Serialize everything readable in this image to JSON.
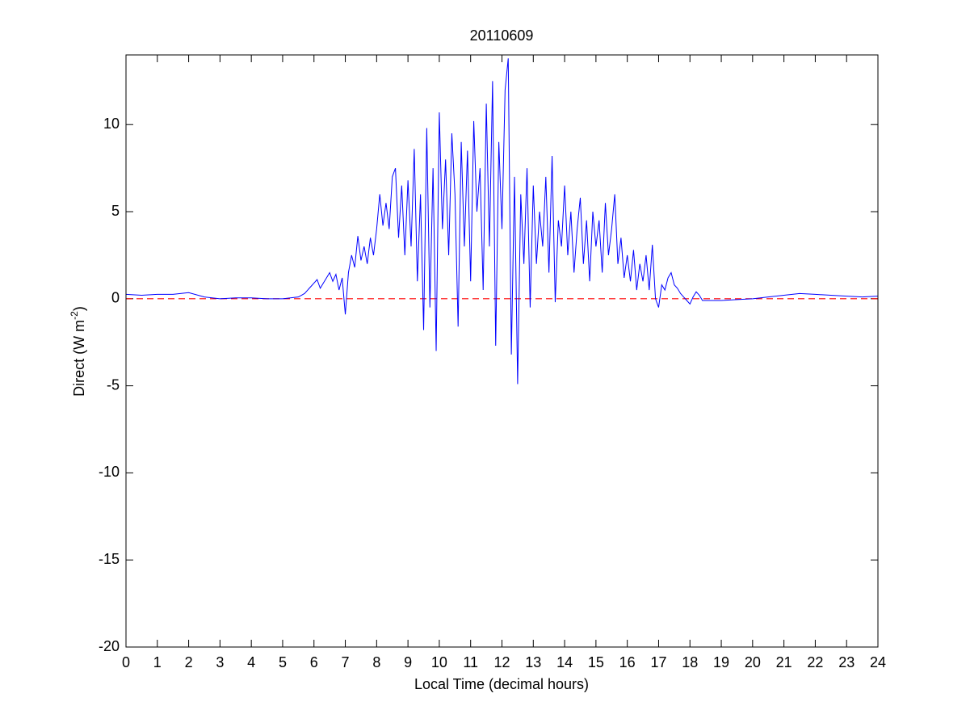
{
  "chart_data": {
    "type": "line",
    "title": "20110609",
    "x_label": "Local Time (decimal hours)",
    "y_label": {
      "text": "Direct (W m",
      "superscript": "-2",
      "end": ")"
    },
    "x": [
      0,
      0.5,
      1,
      1.5,
      2,
      2.5,
      3,
      3.5,
      4,
      4.5,
      5,
      5.5,
      5.6,
      5.7,
      5.8,
      5.9,
      6.0,
      6.1,
      6.2,
      6.3,
      6.4,
      6.5,
      6.6,
      6.7,
      6.8,
      6.9,
      7.0,
      7.1,
      7.2,
      7.3,
      7.4,
      7.5,
      7.6,
      7.7,
      7.8,
      7.9,
      8.0,
      8.1,
      8.2,
      8.3,
      8.4,
      8.5,
      8.6,
      8.7,
      8.8,
      8.9,
      9.0,
      9.1,
      9.2,
      9.3,
      9.4,
      9.5,
      9.6,
      9.7,
      9.8,
      9.9,
      10.0,
      10.1,
      10.2,
      10.3,
      10.4,
      10.5,
      10.6,
      10.7,
      10.8,
      10.9,
      11.0,
      11.1,
      11.2,
      11.3,
      11.4,
      11.5,
      11.6,
      11.7,
      11.8,
      11.9,
      12.0,
      12.1,
      12.2,
      12.3,
      12.4,
      12.5,
      12.6,
      12.7,
      12.8,
      12.9,
      13.0,
      13.1,
      13.2,
      13.3,
      13.4,
      13.5,
      13.6,
      13.7,
      13.8,
      13.9,
      14.0,
      14.1,
      14.2,
      14.3,
      14.4,
      14.5,
      14.6,
      14.7,
      14.8,
      14.9,
      15.0,
      15.1,
      15.2,
      15.3,
      15.4,
      15.5,
      15.6,
      15.7,
      15.8,
      15.9,
      16.0,
      16.1,
      16.2,
      16.3,
      16.4,
      16.5,
      16.6,
      16.7,
      16.8,
      16.9,
      17.0,
      17.1,
      17.2,
      17.3,
      17.4,
      17.5,
      17.6,
      17.7,
      17.8,
      17.9,
      18.0,
      18.1,
      18.2,
      18.3,
      18.4,
      18.5,
      19,
      19.5,
      20,
      20.5,
      21,
      21.5,
      22,
      22.5,
      23,
      23.5,
      24
    ],
    "series": [
      {
        "name": "Direct",
        "color": "#0000ff",
        "values": [
          0.25,
          0.2,
          0.25,
          0.25,
          0.35,
          0.1,
          0.0,
          0.05,
          0.05,
          0.0,
          0.0,
          0.1,
          0.2,
          0.3,
          0.5,
          0.7,
          0.9,
          1.1,
          0.6,
          0.9,
          1.2,
          1.5,
          1.0,
          1.4,
          0.5,
          1.2,
          -0.9,
          1.5,
          2.5,
          1.8,
          3.6,
          2.2,
          3.0,
          2.0,
          3.5,
          2.5,
          4.0,
          6.0,
          4.2,
          5.5,
          4.0,
          7.0,
          7.5,
          3.5,
          6.5,
          2.5,
          6.8,
          3.0,
          8.6,
          1.0,
          6.0,
          -1.8,
          9.8,
          -0.5,
          7.5,
          -3.0,
          10.7,
          4.0,
          8.0,
          2.5,
          9.5,
          6.0,
          -1.6,
          9.0,
          3.0,
          8.5,
          1.0,
          10.2,
          5.0,
          7.5,
          0.5,
          11.2,
          3.0,
          12.5,
          -2.7,
          9.0,
          4.0,
          12.0,
          13.8,
          -3.2,
          7.0,
          -4.9,
          6.0,
          2.0,
          7.5,
          -0.5,
          6.5,
          2.0,
          5.0,
          3.0,
          7.0,
          1.5,
          8.2,
          -0.2,
          4.5,
          3.0,
          6.5,
          2.5,
          5.0,
          1.5,
          4.0,
          5.8,
          2.0,
          4.5,
          1.0,
          5.0,
          3.0,
          4.5,
          1.5,
          5.5,
          2.5,
          4.0,
          6.0,
          2.0,
          3.5,
          1.2,
          2.5,
          1.0,
          2.8,
          0.5,
          2.0,
          1.0,
          2.5,
          0.5,
          3.1,
          0.0,
          -0.5,
          0.8,
          0.5,
          1.2,
          1.5,
          0.8,
          0.6,
          0.3,
          0.1,
          -0.1,
          -0.3,
          0.1,
          0.4,
          0.2,
          -0.1,
          -0.1,
          -0.1,
          -0.05,
          0.0,
          0.1,
          0.2,
          0.3,
          0.25,
          0.2,
          0.15,
          0.1,
          0.15
        ]
      }
    ],
    "reference_line": {
      "value": 0,
      "color": "#ff0000"
    },
    "xlim": [
      0,
      24
    ],
    "xticks": [
      0,
      1,
      2,
      3,
      4,
      5,
      6,
      7,
      8,
      9,
      10,
      11,
      12,
      13,
      14,
      15,
      16,
      17,
      18,
      19,
      20,
      21,
      22,
      23,
      24
    ],
    "ylim": [
      -20,
      14
    ],
    "yticks": [
      -20,
      -15,
      -10,
      -5,
      0,
      5,
      10
    ],
    "grid": false
  }
}
